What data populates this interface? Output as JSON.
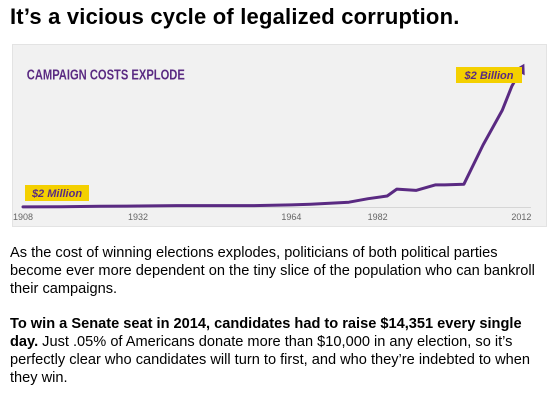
{
  "headline": "It’s a vicious cycle of legalized corruption.",
  "colors": {
    "line": "#5a2a82",
    "title": "#5a2a82",
    "label_bg": "#f4d000",
    "label_text": "#5a2a82",
    "panel_bg": "#f1f1f1",
    "tick_text": "#666666"
  },
  "chart_data": {
    "type": "line",
    "title": "CAMPAIGN COSTS EXPLODE",
    "xlabel": "",
    "ylabel": "",
    "xlim": [
      1908,
      2014
    ],
    "ylim": [
      0,
      2000
    ],
    "xticks": [
      "1908",
      "1932",
      "1964",
      "1982",
      "2012"
    ],
    "annotations": [
      "$2 Million",
      "$2 Billion"
    ],
    "x": [
      1908,
      1916,
      1924,
      1932,
      1940,
      1948,
      1956,
      1964,
      1968,
      1972,
      1976,
      1980,
      1984,
      1986,
      1990,
      1994,
      1996,
      2000,
      2004,
      2008,
      2010,
      2012
    ],
    "y": [
      2,
      5,
      10,
      15,
      20,
      20,
      20,
      30,
      40,
      55,
      70,
      120,
      160,
      260,
      240,
      320,
      320,
      330,
      900,
      1400,
      1750,
      2000
    ]
  },
  "body": {
    "p1": "As the cost of winning elections explodes, politicians of both political parties become ever more dependent on the tiny slice of the population who can bankroll their campaigns.",
    "p2_bold": "To win a Senate seat in 2014, candidates had to raise $14,351 every single day.",
    "p2_rest": " Just .05% of Americans donate more than $10,000 in any election, so it’s perfectly clear who candidates will turn to first, and who they’re indebted to when they win."
  }
}
